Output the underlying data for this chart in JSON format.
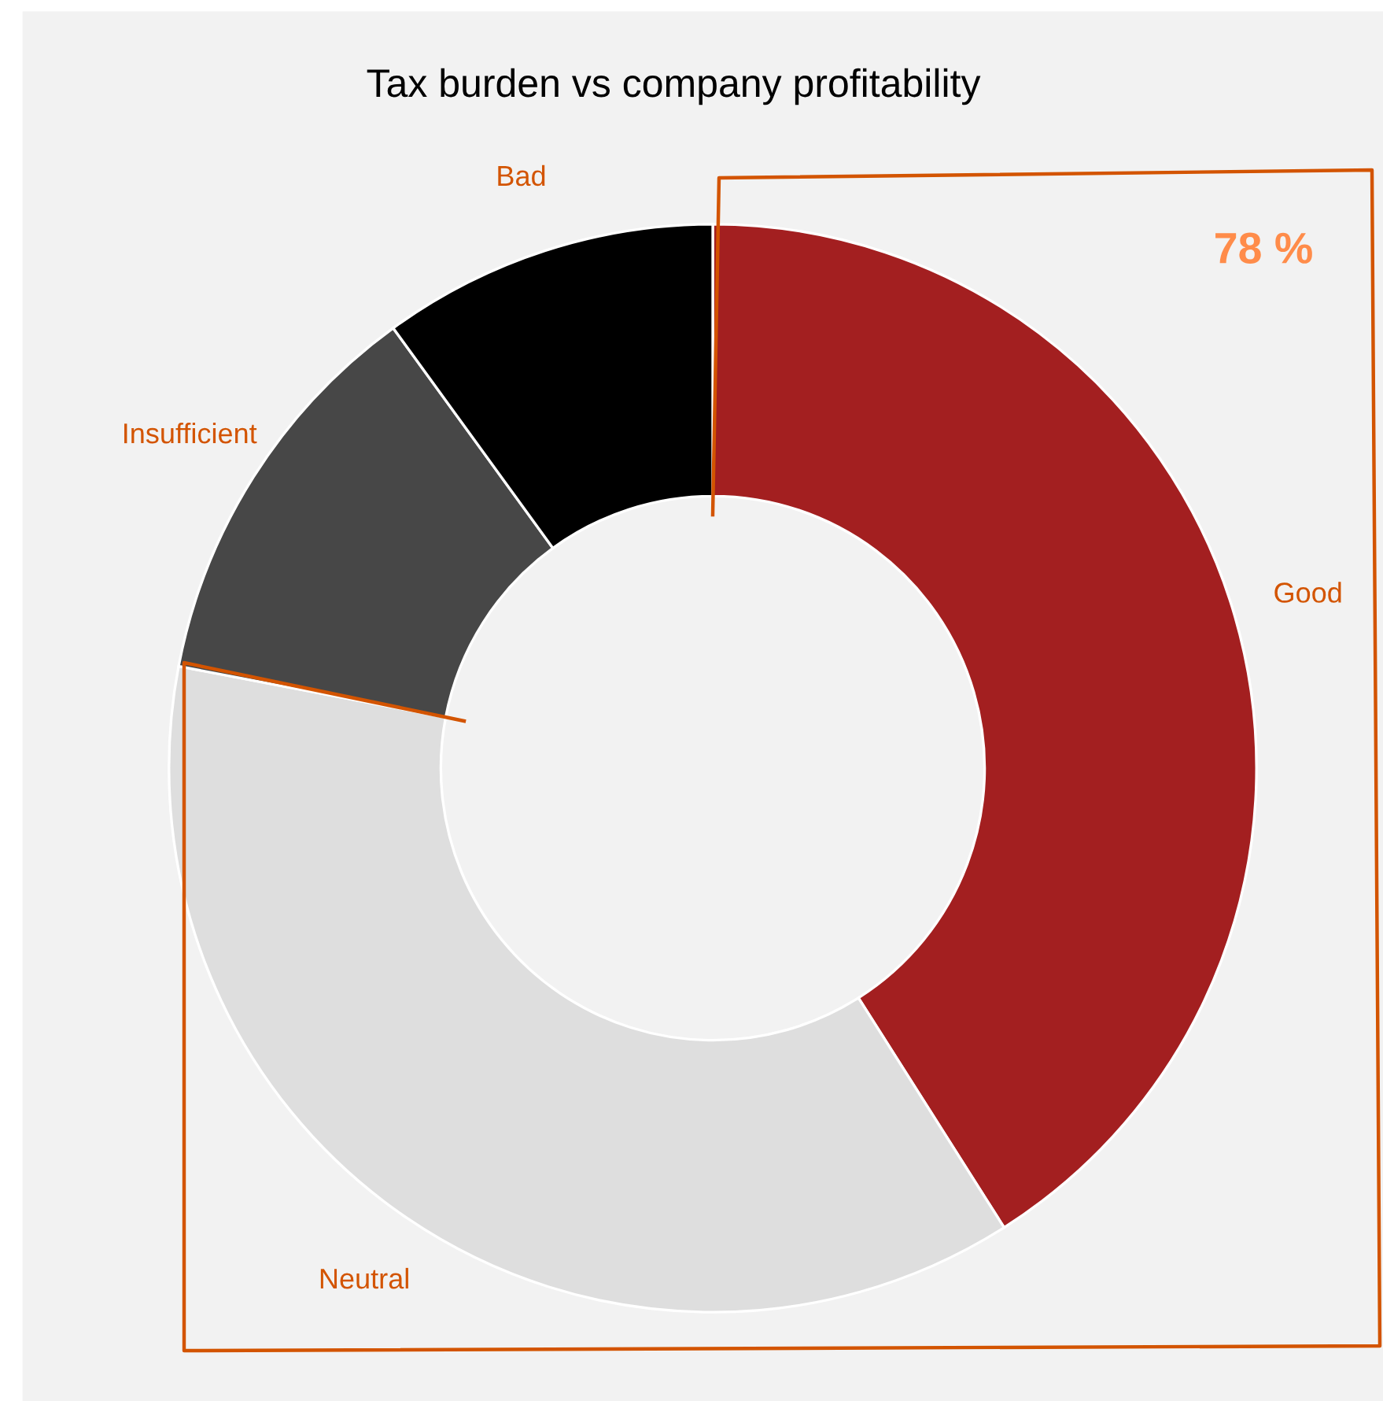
{
  "chart_data": {
    "type": "donut",
    "title": "Tax burden vs company profitability",
    "categories": [
      "Good",
      "Neutral",
      "Insufficient",
      "Bad"
    ],
    "values": [
      41,
      37,
      12,
      10
    ],
    "colors": [
      "#a31f20",
      "#dedede",
      "#474747",
      "#000000"
    ],
    "annotations": [
      "78 %"
    ],
    "legend": false
  }
}
